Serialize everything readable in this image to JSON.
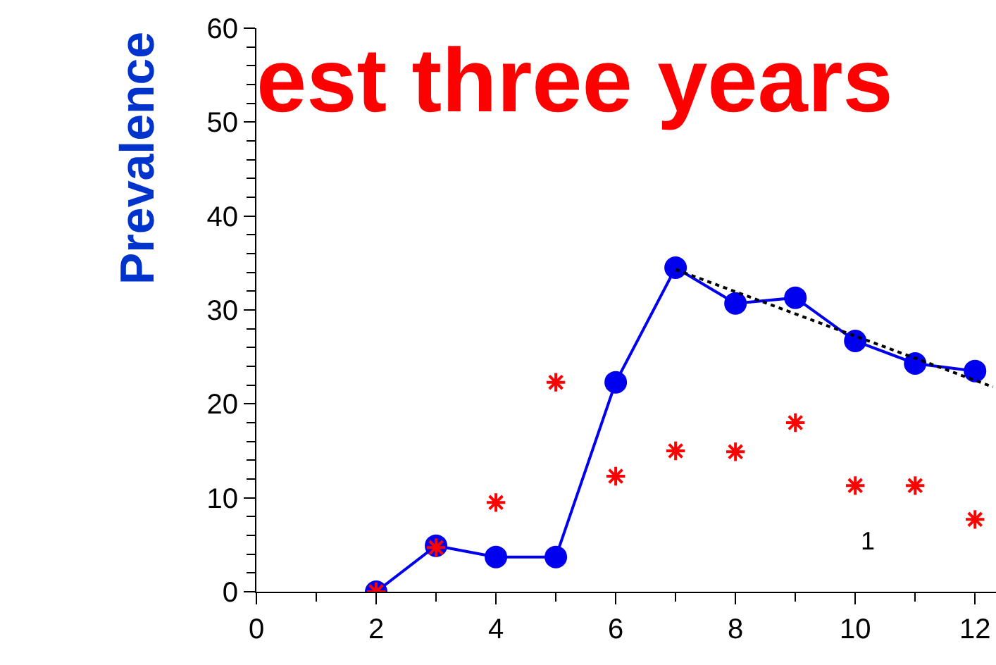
{
  "chart_data": {
    "type": "line",
    "title": "est three years",
    "ylabel": "Prevalence",
    "x": [
      2,
      3,
      4,
      5,
      6,
      7,
      8,
      9,
      10,
      11,
      12
    ],
    "series": [
      {
        "color": "#0000ee",
        "marker": "circle",
        "values": [
          0,
          4.9,
          3.7,
          3.7,
          22.3,
          34.5,
          30.7,
          31.3,
          26.7,
          24.3,
          23.5
        ]
      },
      {
        "type": "scatter",
        "color": "#ff0000",
        "marker": "cross",
        "values": [
          0,
          4.7,
          9.5,
          22.3,
          12.3,
          15,
          14.9,
          18,
          11.3,
          11.3,
          7.7
        ]
      },
      {
        "color": "#000000",
        "line_style": "dotted",
        "x": [
          7,
          12.3
        ],
        "values": [
          34.3,
          21.8
        ]
      }
    ],
    "annotations": [
      "1"
    ],
    "xlim": [
      0,
      12.35
    ],
    "xticks": [
      0,
      2,
      4,
      6,
      8,
      10,
      12
    ],
    "ylim": [
      0,
      60
    ],
    "yticks": [
      0,
      10,
      20,
      30,
      40,
      50,
      60
    ]
  }
}
